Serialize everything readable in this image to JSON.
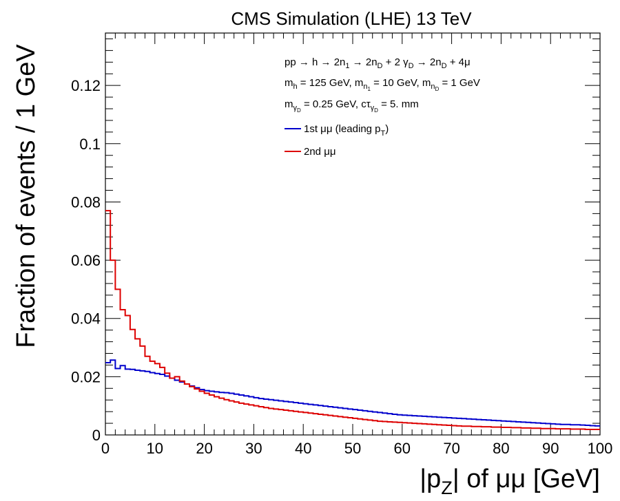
{
  "chart_data": {
    "type": "line",
    "style": "step-histogram",
    "title": "CMS Simulation (LHE) 13 TeV",
    "xlabel": "|p_Z| of μμ [GeV]",
    "ylabel": "Fraction of events / 1 GeV",
    "xlim": [
      0,
      100
    ],
    "ylim": [
      0,
      0.138
    ],
    "x_ticks": [
      0,
      10,
      20,
      30,
      40,
      50,
      60,
      70,
      80,
      90,
      100
    ],
    "y_ticks": [
      0,
      0.02,
      0.04,
      0.06,
      0.08,
      0.1,
      0.12
    ],
    "legend_position": "top-right",
    "annotations": [
      "pp → h → 2n_1 → 2n_D + 2 γ_D → 2n_D + 4μ",
      "m_h = 125 GeV, m_n_1 = 10 GeV, m_n_D = 1 GeV",
      "m_γ_D = 0.25 GeV, cτ_γ_D = 5. mm"
    ],
    "series": [
      {
        "name": "1st μμ (leading p_T)",
        "color": "#0000cc",
        "x_bin_edges": [
          0,
          1,
          2,
          3,
          4,
          5,
          6,
          7,
          8,
          9,
          10,
          11,
          12,
          13,
          14,
          15,
          16,
          17,
          18,
          19,
          20,
          21,
          22,
          23,
          24,
          25,
          26,
          27,
          28,
          29,
          30,
          31,
          32,
          33,
          34,
          35,
          36,
          37,
          38,
          39,
          40,
          41,
          42,
          43,
          44,
          45,
          46,
          47,
          48,
          49,
          50,
          51,
          52,
          53,
          54,
          55,
          56,
          57,
          58,
          59,
          60,
          61,
          62,
          63,
          64,
          65,
          66,
          67,
          68,
          69,
          70,
          71,
          72,
          73,
          74,
          75,
          76,
          77,
          78,
          79,
          80,
          81,
          82,
          83,
          84,
          85,
          86,
          87,
          88,
          89,
          90,
          91,
          92,
          93,
          94,
          95,
          96,
          97,
          98,
          99,
          100
        ],
        "values": [
          0.0248,
          0.0257,
          0.0228,
          0.0238,
          0.0226,
          0.0225,
          0.0222,
          0.022,
          0.0218,
          0.0214,
          0.0211,
          0.0208,
          0.0202,
          0.0195,
          0.0188,
          0.0182,
          0.0175,
          0.0168,
          0.0162,
          0.0156,
          0.0152,
          0.015,
          0.0148,
          0.0146,
          0.0145,
          0.0143,
          0.014,
          0.0137,
          0.0134,
          0.0131,
          0.0128,
          0.0125,
          0.0123,
          0.0121,
          0.0119,
          0.0117,
          0.0115,
          0.0113,
          0.0111,
          0.0109,
          0.0107,
          0.0105,
          0.0103,
          0.0101,
          0.0099,
          0.0097,
          0.0095,
          0.0093,
          0.0091,
          0.0089,
          0.0087,
          0.0085,
          0.0083,
          0.0081,
          0.0079,
          0.0077,
          0.0075,
          0.0073,
          0.0071,
          0.0069,
          0.0068,
          0.0067,
          0.0066,
          0.0065,
          0.0064,
          0.0063,
          0.0062,
          0.0061,
          0.006,
          0.0059,
          0.0058,
          0.0057,
          0.0056,
          0.0055,
          0.0054,
          0.0053,
          0.0052,
          0.0051,
          0.005,
          0.0049,
          0.0048,
          0.0047,
          0.0046,
          0.0045,
          0.0044,
          0.0043,
          0.0042,
          0.0041,
          0.004,
          0.0039,
          0.0038,
          0.0037,
          0.0036,
          0.0036,
          0.0035,
          0.0035,
          0.0034,
          0.0033,
          0.0032,
          0.0031
        ]
      },
      {
        "name": "2nd μμ",
        "color": "#dd0000",
        "x_bin_edges": [
          0,
          1,
          2,
          3,
          4,
          5,
          6,
          7,
          8,
          9,
          10,
          11,
          12,
          13,
          14,
          15,
          16,
          17,
          18,
          19,
          20,
          21,
          22,
          23,
          24,
          25,
          26,
          27,
          28,
          29,
          30,
          31,
          32,
          33,
          34,
          35,
          36,
          37,
          38,
          39,
          40,
          41,
          42,
          43,
          44,
          45,
          46,
          47,
          48,
          49,
          50,
          51,
          52,
          53,
          54,
          55,
          56,
          57,
          58,
          59,
          60,
          61,
          62,
          63,
          64,
          65,
          66,
          67,
          68,
          69,
          70,
          71,
          72,
          73,
          74,
          75,
          76,
          77,
          78,
          79,
          80,
          81,
          82,
          83,
          84,
          85,
          86,
          87,
          88,
          89,
          90,
          91,
          92,
          93,
          94,
          95,
          96,
          97,
          98,
          99,
          100
        ],
        "values": [
          0.077,
          0.06,
          0.05,
          0.043,
          0.041,
          0.0362,
          0.033,
          0.0305,
          0.027,
          0.0253,
          0.0245,
          0.0232,
          0.0212,
          0.0195,
          0.02,
          0.0185,
          0.0175,
          0.0166,
          0.0158,
          0.015,
          0.0143,
          0.0137,
          0.0131,
          0.0126,
          0.0121,
          0.0117,
          0.0113,
          0.0109,
          0.0106,
          0.0103,
          0.01,
          0.0097,
          0.0094,
          0.0091,
          0.0089,
          0.0087,
          0.0085,
          0.0083,
          0.0081,
          0.0079,
          0.0077,
          0.0075,
          0.0073,
          0.0071,
          0.0069,
          0.0067,
          0.0065,
          0.0063,
          0.0061,
          0.0059,
          0.0057,
          0.0055,
          0.0053,
          0.0051,
          0.0049,
          0.0047,
          0.0046,
          0.0045,
          0.0044,
          0.0043,
          0.0042,
          0.0041,
          0.004,
          0.0039,
          0.0038,
          0.0037,
          0.0036,
          0.0035,
          0.0034,
          0.0033,
          0.0032,
          0.0031,
          0.003,
          0.003,
          0.0029,
          0.0029,
          0.0028,
          0.0028,
          0.0027,
          0.0027,
          0.0026,
          0.0026,
          0.0025,
          0.0025,
          0.0024,
          0.0024,
          0.0023,
          0.0023,
          0.0022,
          0.0022,
          0.0022,
          0.0021,
          0.0021,
          0.0021,
          0.002,
          0.002,
          0.002,
          0.0019,
          0.0019,
          0.0019
        ]
      }
    ]
  }
}
